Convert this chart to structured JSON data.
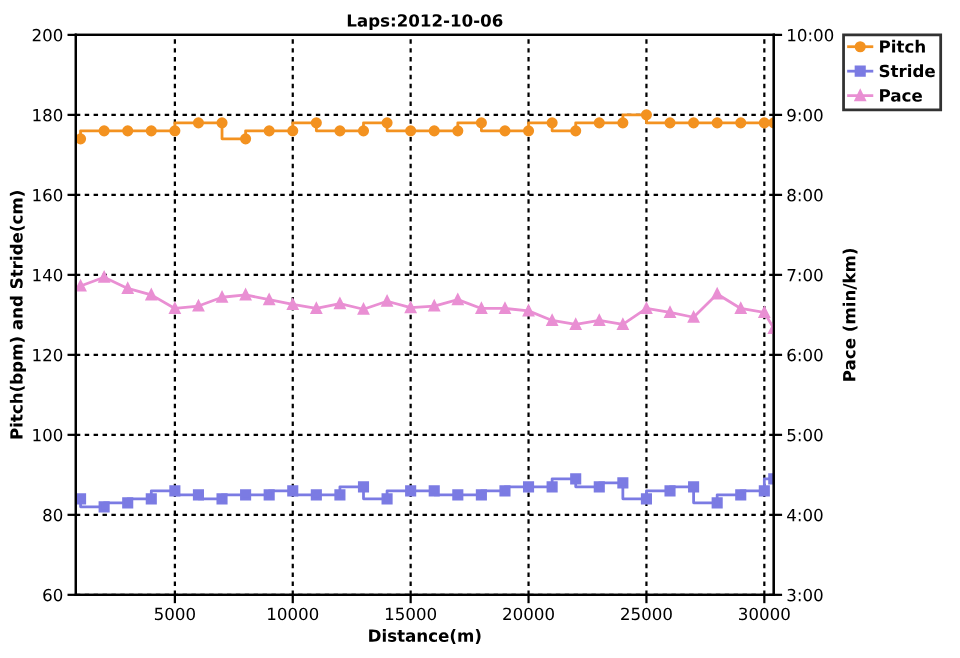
{
  "chart_data": {
    "type": "line",
    "title": "Laps:2012-10-06",
    "xlabel": "Distance(m)",
    "ylabel": "Pitch(bpm) and Stride(cm)",
    "y2label": "Pace (min/km)",
    "x": [
      1000,
      2000,
      3000,
      4000,
      5000,
      6000,
      7000,
      8000,
      9000,
      10000,
      11000,
      12000,
      13000,
      14000,
      15000,
      16000,
      17000,
      18000,
      19000,
      20000,
      21000,
      22000,
      23000,
      24000,
      25000,
      26000,
      27000,
      28000,
      29000,
      30000,
      30400
    ],
    "series": [
      {
        "name": "Pitch",
        "type": "step",
        "color": "#f39220",
        "marker": "circle",
        "values": [
          174,
          176,
          176,
          176,
          176,
          178,
          178,
          174,
          176,
          176,
          178,
          176,
          176,
          178,
          176,
          176,
          176,
          178,
          176,
          176,
          178,
          176,
          178,
          178,
          180,
          178,
          178,
          178,
          178,
          178,
          178
        ]
      },
      {
        "name": "Stride",
        "type": "step",
        "color": "#7b7be3",
        "marker": "square",
        "values": [
          84,
          82,
          83,
          84,
          86,
          85,
          84,
          85,
          85,
          86,
          85,
          85,
          87,
          84,
          86,
          86,
          85,
          85,
          86,
          87,
          87,
          89,
          87,
          88,
          84,
          86,
          87,
          83,
          85,
          86,
          89
        ]
      },
      {
        "name": "Pace",
        "type": "line",
        "color": "#e98fd3",
        "marker": "triangle",
        "axis": "y2",
        "values": [
          6.86,
          6.97,
          6.83,
          6.75,
          6.58,
          6.61,
          6.72,
          6.75,
          6.69,
          6.63,
          6.58,
          6.64,
          6.57,
          6.67,
          6.59,
          6.61,
          6.69,
          6.58,
          6.58,
          6.55,
          6.43,
          6.38,
          6.43,
          6.38,
          6.58,
          6.53,
          6.47,
          6.76,
          6.58,
          6.53,
          6.33
        ]
      }
    ],
    "xlim": [
      800,
      30400
    ],
    "xticks": [
      5000,
      10000,
      15000,
      20000,
      25000,
      30000
    ],
    "ylim": [
      60,
      200
    ],
    "yticks": [
      60,
      80,
      100,
      120,
      140,
      160,
      180,
      200
    ],
    "y2lim": [
      3,
      10
    ],
    "y2ticks": [
      {
        "value": 3,
        "label": "3:00"
      },
      {
        "value": 4,
        "label": "4:00"
      },
      {
        "value": 5,
        "label": "5:00"
      },
      {
        "value": 6,
        "label": "6:00"
      },
      {
        "value": 7,
        "label": "7:00"
      },
      {
        "value": 8,
        "label": "8:00"
      },
      {
        "value": 9,
        "label": "9:00"
      },
      {
        "value": 10,
        "label": "10:00"
      }
    ],
    "grid": true,
    "legend": "top right",
    "line_style": "solid"
  }
}
